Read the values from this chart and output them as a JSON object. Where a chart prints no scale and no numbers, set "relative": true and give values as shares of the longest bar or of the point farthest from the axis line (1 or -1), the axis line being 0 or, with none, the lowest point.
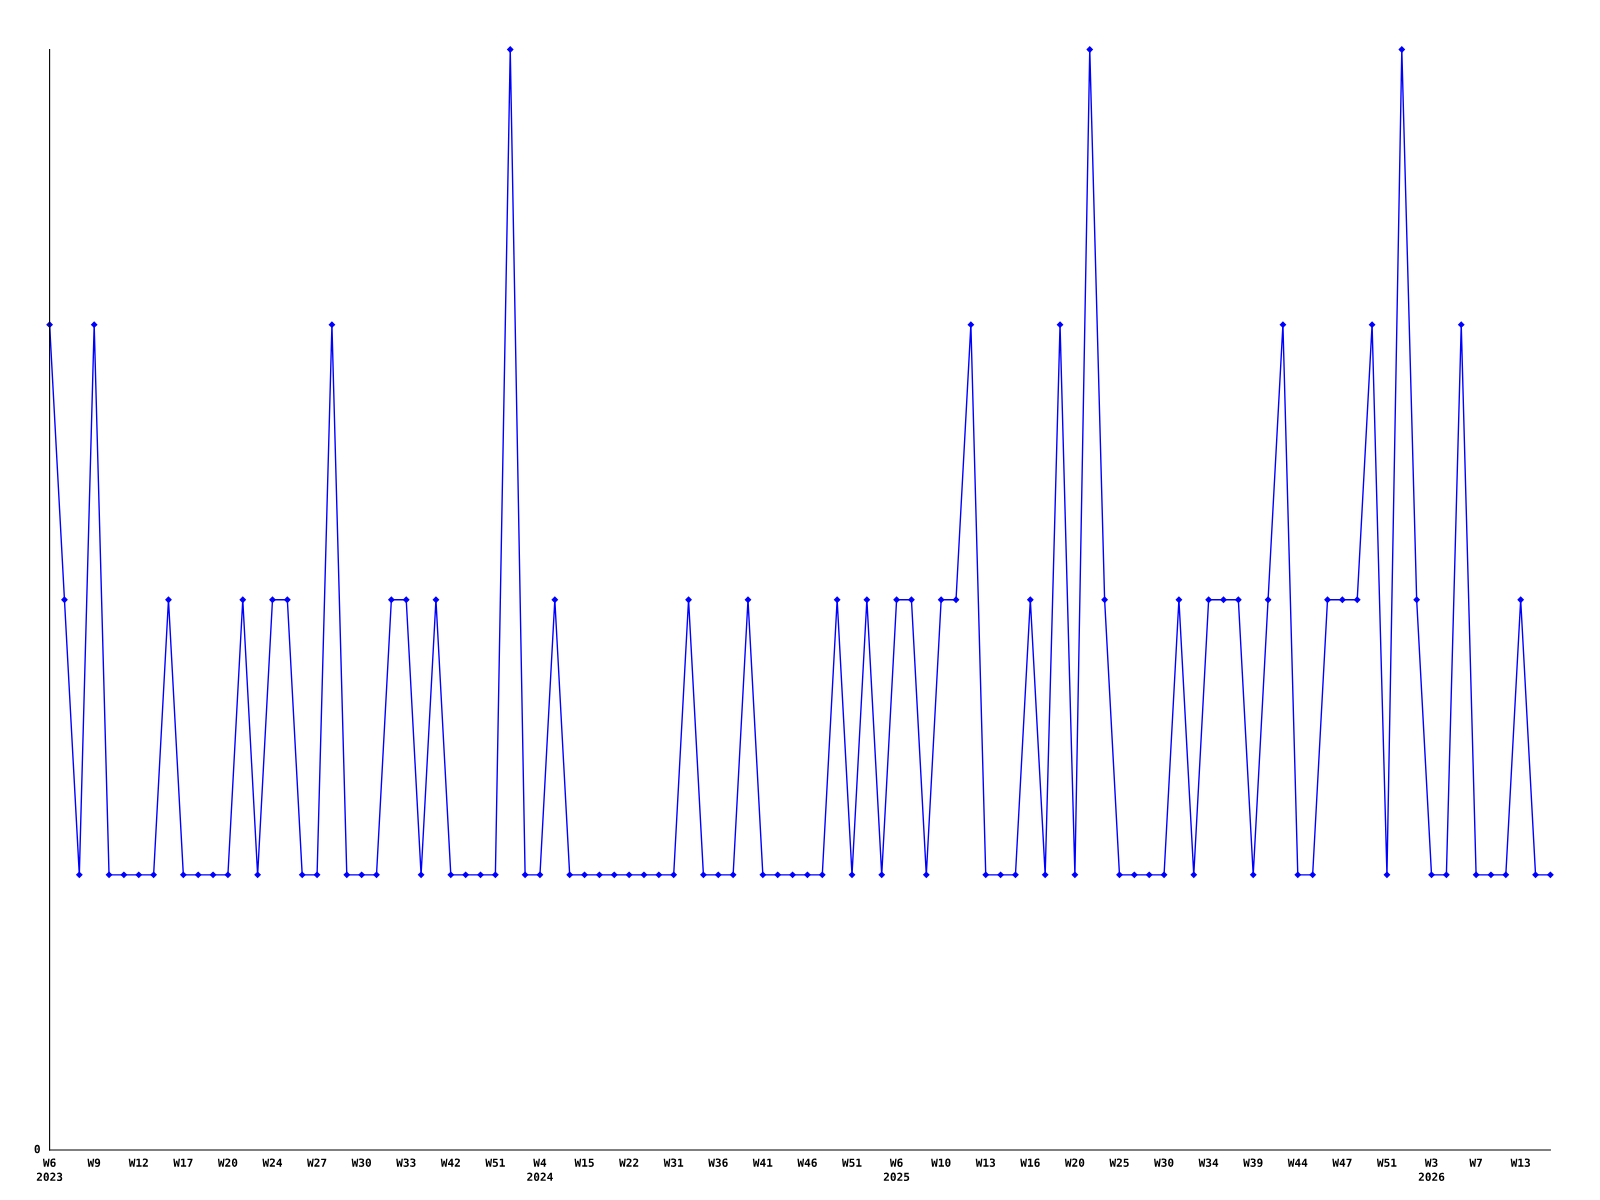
{
  "chart_data": {
    "type": "line",
    "relative": true,
    "categories": [
      "W6\n2023",
      null,
      null,
      "W9",
      null,
      null,
      "W12",
      null,
      null,
      "W17",
      null,
      null,
      "W20",
      null,
      null,
      "W24",
      null,
      null,
      "W27",
      null,
      null,
      "W30",
      null,
      null,
      "W33",
      null,
      null,
      "W42",
      null,
      null,
      "W51",
      null,
      null,
      "W4\n2024",
      null,
      null,
      "W15",
      null,
      null,
      "W22",
      null,
      null,
      "W31",
      null,
      null,
      "W36",
      null,
      null,
      "W41",
      null,
      null,
      "W46",
      null,
      null,
      "W51",
      null,
      null,
      "W6\n2025",
      null,
      null,
      "W10",
      null,
      null,
      "W13",
      null,
      null,
      "W16",
      null,
      null,
      "W20",
      null,
      null,
      "W25",
      null,
      null,
      "W30",
      null,
      null,
      "W34",
      null,
      null,
      "W39",
      null,
      null,
      "W44",
      null,
      null,
      "W47",
      null,
      null,
      "W51",
      null,
      null,
      "W3\n2026",
      null,
      null,
      "W7",
      null,
      null,
      "W13",
      null,
      null
    ],
    "series": [
      {
        "color": "#0000ff",
        "values": [
          0.75,
          0.5,
          0.25,
          0.75,
          0.25,
          0.25,
          0.25,
          0.25,
          0.5,
          0.25,
          0.25,
          0.25,
          0.25,
          0.5,
          0.25,
          0.5,
          0.5,
          0.25,
          0.25,
          0.75,
          0.25,
          0.25,
          0.25,
          0.5,
          0.5,
          0.25,
          0.5,
          0.25,
          0.25,
          0.25,
          0.25,
          1,
          0.25,
          0.25,
          0.5,
          0.25,
          0.25,
          0.25,
          0.25,
          0.25,
          0.25,
          0.25,
          0.25,
          0.5,
          0.25,
          0.25,
          0.25,
          0.5,
          0.25,
          0.25,
          0.25,
          0.25,
          0.25,
          0.5,
          0.25,
          0.5,
          0.25,
          0.5,
          0.5,
          0.25,
          0.5,
          0.5,
          0.75,
          0.25,
          0.25,
          0.25,
          0.5,
          0.25,
          0.75,
          0.25,
          1,
          0.5,
          0.25,
          0.25,
          0.25,
          0.25,
          0.5,
          0.25,
          0.5,
          0.5,
          0.5,
          0.25,
          0.5,
          0.75,
          0.25,
          0.25,
          0.5,
          0.5,
          0.5,
          0.75,
          0.25,
          1,
          0.5,
          0.25,
          0.25,
          0.75,
          0.25,
          0.25,
          0.25,
          0.5,
          0.25,
          0.25
        ]
      }
    ],
    "annotations": [
      "0"
    ],
    "marker": "diamond",
    "line_style": "solid",
    "grid": false,
    "legend": false
  }
}
